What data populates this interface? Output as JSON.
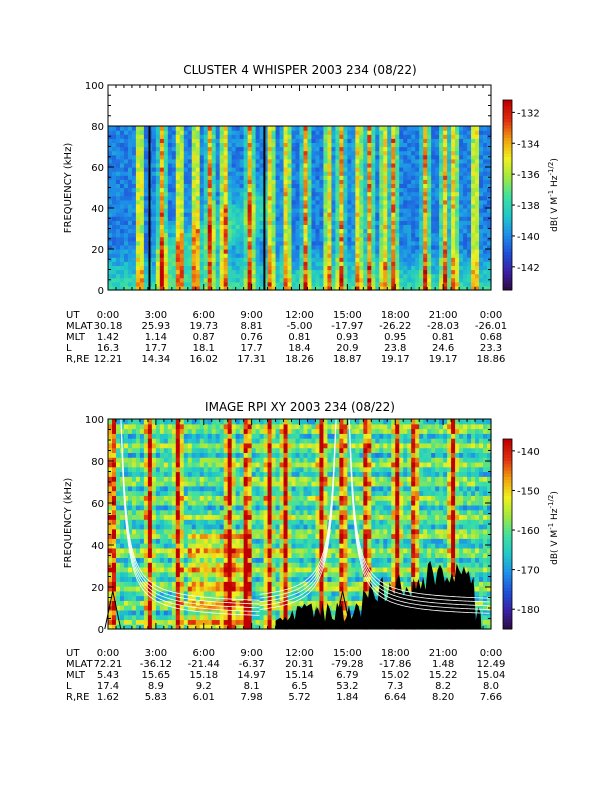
{
  "colorscale": [
    "#2a0a3a",
    "#3b1fa0",
    "#1f4fd8",
    "#1e8fe8",
    "#20c8c8",
    "#40e0a0",
    "#a0e840",
    "#f0f020",
    "#f0a010",
    "#e03010",
    "#c00000"
  ],
  "time_ticks": [
    "0:00",
    "3:00",
    "6:00",
    "9:00",
    "12:00",
    "15:00",
    "18:00",
    "21:00",
    "0:00"
  ],
  "chart_data": [
    {
      "type": "heatmap",
      "title": "CLUSTER 4 WHISPER 2003 234 (08/22)",
      "ylabel": "FREQUENCY (kHz)",
      "ylim": [
        0,
        100
      ],
      "yticks": [
        "0",
        "20",
        "40",
        "60",
        "80",
        "100"
      ],
      "data_max_khz": 80,
      "colorbar": {
        "label_base": "dB( V M",
        "label_exp1": "-1",
        "label_mid": " Hz",
        "label_exp2": "-1/2",
        "label_end": ")",
        "range": [
          -143.5,
          -131.2
        ],
        "ticks": [
          "-132",
          "-134",
          "-136",
          "-138",
          "-140",
          "-142"
        ],
        "tick_values": [
          -132,
          -134,
          -136,
          -138,
          -140,
          -142
        ]
      },
      "bright_bursts_hours": [
        2.0,
        3.4,
        4.5,
        5.5,
        6.4,
        7.3,
        8.9,
        10.2,
        11.2,
        12.4,
        13.8,
        14.6,
        15.7,
        16.4,
        17.3,
        17.9,
        19.9,
        21.1,
        21.7,
        23.0
      ],
      "ephemeris": {
        "row_labels": [
          "UT",
          "MLAT",
          "MLT",
          "L",
          "R,RE"
        ],
        "rows": [
          [
            "30.18",
            "25.93",
            "19.73",
            "8.81",
            "-5.00",
            "-17.97",
            "-26.22",
            "-28.03",
            "-26.01"
          ],
          [
            "1.42",
            "1.14",
            "0.87",
            "0.76",
            "0.81",
            "0.93",
            "0.95",
            "0.81",
            "0.68"
          ],
          [
            "16.3",
            "17.7",
            "18.1",
            "17.7",
            "18.4",
            "20.9",
            "23.8",
            "24.6",
            "23.3"
          ],
          [
            "12.21",
            "14.34",
            "16.02",
            "17.31",
            "18.26",
            "18.87",
            "19.17",
            "19.17",
            "18.86"
          ]
        ]
      }
    },
    {
      "type": "heatmap",
      "title": "IMAGE RPI XY 2003 234 (08/22)",
      "ylabel": "FREQUENCY (kHz)",
      "ylim": [
        0,
        100
      ],
      "yticks": [
        "0",
        "20",
        "40",
        "60",
        "80",
        "100"
      ],
      "data_max_khz": 102,
      "colorbar": {
        "label_base": "dB( V M",
        "label_exp1": "-1",
        "label_mid": " Hz",
        "label_exp2": "-1/2",
        "label_end": ")",
        "range": [
          -185,
          -137
        ],
        "ticks": [
          "-140",
          "-150",
          "-160",
          "-170",
          "-180"
        ],
        "tick_values": [
          -140,
          -150,
          -160,
          -170,
          -180
        ]
      },
      "bright_bursts_hours": [
        0.3,
        2.6,
        4.4,
        7.6,
        8.7,
        10.1,
        11.1,
        13.4,
        14.7,
        16.2,
        18.1,
        19.2,
        21.6
      ],
      "ephemeris": {
        "row_labels": [
          "UT",
          "MLAT",
          "MLT",
          "L",
          "R,RE"
        ],
        "rows": [
          [
            "72.21",
            "-36.12",
            "-21.44",
            "-6.37",
            "20.31",
            "-79.28",
            "-17.86",
            "1.48",
            "12.49"
          ],
          [
            "5.43",
            "15.65",
            "15.18",
            "14.97",
            "15.14",
            "6.79",
            "15.02",
            "15.22",
            "15.04"
          ],
          [
            "17.4",
            "8.9",
            "9.2",
            "8.1",
            "6.5",
            "53.2",
            "7.3",
            "8.2",
            "8.0"
          ],
          [
            "1.62",
            "5.83",
            "6.01",
            "7.98",
            "5.72",
            "1.84",
            "6.64",
            "8.20",
            "7.66"
          ]
        ]
      }
    }
  ]
}
